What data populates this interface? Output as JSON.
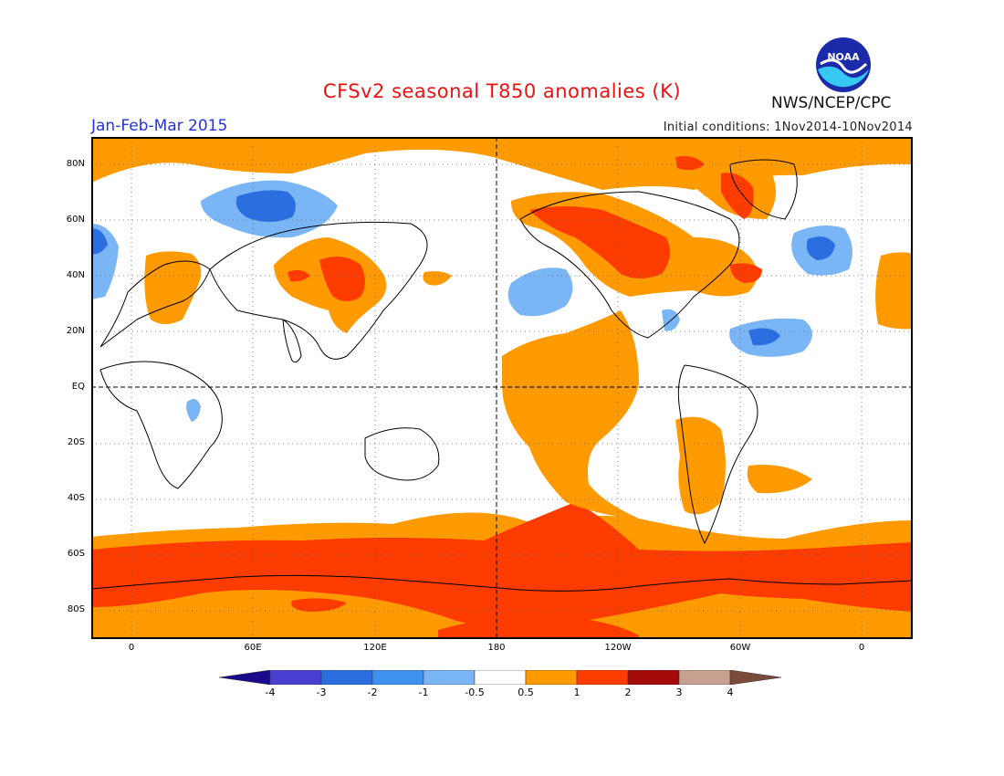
{
  "title": "CFSv2 seasonal T850 anomalies (K)",
  "agency": "NWS/NCEP/CPC",
  "logo_text": "NOAA",
  "period": "Jan-Feb-Mar 2015",
  "initial_conditions": "Initial conditions: 1Nov2014-10Nov2014",
  "lat_labels": [
    "80N",
    "60N",
    "40N",
    "20N",
    "EQ",
    "20S",
    "40S",
    "60S",
    "80S"
  ],
  "lon_labels": [
    "0",
    "60E",
    "120E",
    "180",
    "120W",
    "60W",
    "0"
  ],
  "colorbar": {
    "labels": [
      "-4",
      "-3",
      "-2",
      "-1",
      "-0.5",
      "0.5",
      "1",
      "2",
      "3",
      "4"
    ],
    "colors": [
      "#1a0a8c",
      "#4a3fd0",
      "#2a6ee0",
      "#3f92f0",
      "#7ab6f5",
      "#ffffff",
      "#ff9a00",
      "#ff3c00",
      "#a50a0a",
      "#c8a090",
      "#7a4a3a"
    ]
  },
  "colors": {
    "title": "#ee1111",
    "period": "#2233dd",
    "warm": "#ff9a00",
    "hot": "#ff3c00",
    "cool": "#7ab6f5",
    "cold": "#2a6ee0"
  }
}
